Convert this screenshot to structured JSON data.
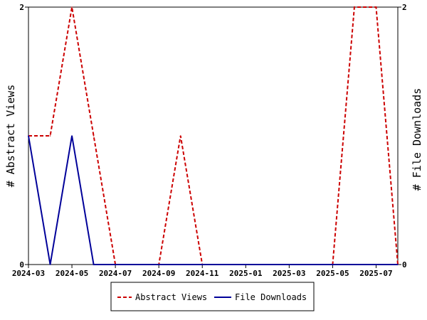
{
  "chart_data": {
    "type": "line",
    "title": "",
    "xlabel": "",
    "ylabel_left": "# Abstract Views",
    "ylabel_right": "# File Downloads",
    "x": [
      "2024-03",
      "2024-04",
      "2024-05",
      "2024-06",
      "2024-07",
      "2024-08",
      "2024-09",
      "2024-10",
      "2024-11",
      "2024-12",
      "2025-01",
      "2025-02",
      "2025-03",
      "2025-04",
      "2025-05",
      "2025-06",
      "2025-07",
      "2025-08"
    ],
    "x_tick_labels": [
      "2024-03",
      "2024-05",
      "2024-07",
      "2024-09",
      "2024-11",
      "2025-01",
      "2025-03",
      "2025-05",
      "2025-07"
    ],
    "ylim_left": [
      0,
      2
    ],
    "ylim_right": [
      0,
      2
    ],
    "y_tick_labels_left": [
      "0",
      "2"
    ],
    "y_tick_labels_right": [
      "0",
      "2"
    ],
    "grid": false,
    "legend_position": "bottom",
    "series": [
      {
        "name": "Abstract Views",
        "axis": "left",
        "style": "dashed",
        "color": "#cc0000",
        "values": [
          1,
          1,
          2,
          1,
          0,
          0,
          0,
          1,
          0,
          0,
          0,
          0,
          0,
          0,
          0,
          2,
          2,
          0
        ]
      },
      {
        "name": "File Downloads",
        "axis": "right",
        "style": "solid",
        "color": "#000099",
        "values": [
          1,
          0,
          1,
          0,
          0,
          0,
          0,
          0,
          0,
          0,
          0,
          0,
          0,
          0,
          0,
          0,
          0,
          0
        ]
      }
    ]
  }
}
